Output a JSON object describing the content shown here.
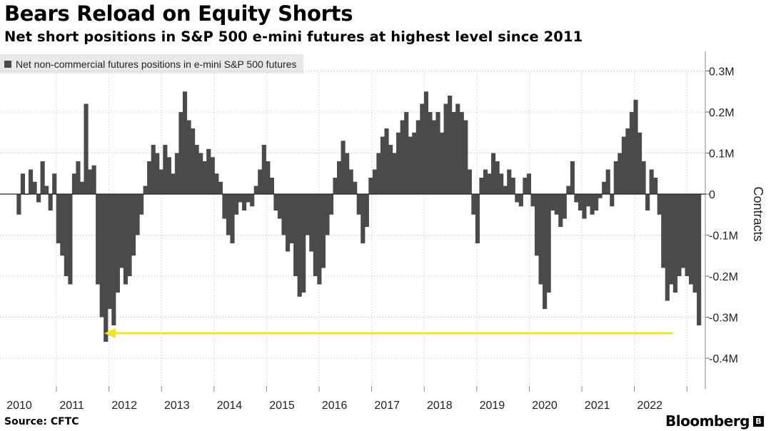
{
  "header": {
    "title": "Bears Reload on Equity Shorts",
    "subtitle": "Net short positions in S&P 500 e-mini futures at highest level since 2011"
  },
  "legend": {
    "label": "Net non-commercial futures positions in e-mini S&P 500 futures"
  },
  "footer": {
    "source": "Source: CFTC",
    "brand": "Bloomberg"
  },
  "colors": {
    "bars": "#4a4a4a",
    "grid": "#b9b9b9",
    "arrow": "#f2e51d",
    "zero_line": "#222222"
  },
  "chart_data": {
    "type": "bar",
    "title": "Bears Reload on Equity Shorts",
    "ylabel": "Contracts",
    "ylim": [
      -0.42,
      0.33
    ],
    "y_ticks": [
      0.3,
      0.2,
      0.1,
      0,
      -0.1,
      -0.2,
      -0.3,
      -0.4
    ],
    "y_tick_labels": [
      "0.3M",
      "0.2M",
      "0.1M",
      "0",
      "-0.1M",
      "-0.2M",
      "-0.3M",
      "-0.4M"
    ],
    "x_tick_labels": [
      "2010",
      "2011",
      "2012",
      "2013",
      "2014",
      "2015",
      "2016",
      "2017",
      "2018",
      "2019",
      "2020",
      "2021",
      "2022"
    ],
    "grid": true,
    "legend_position": "top-left",
    "annotation": "yellow arrow marking current net short level back to 2011 low",
    "series": [
      {
        "name": "Net non-commercial futures positions in e-mini S&P 500 futures",
        "unit": "million contracts",
        "x_start": 2009.95,
        "x_end": 2022.97,
        "points_per_year": 10,
        "values": [
          -0.05,
          0.05,
          0.0,
          0.06,
          0.03,
          -0.02,
          0.08,
          0.02,
          -0.04,
          0.05,
          -0.12,
          -0.15,
          -0.2,
          -0.22,
          0.05,
          0.08,
          0.03,
          0.22,
          0.06,
          0.07,
          -0.22,
          -0.3,
          -0.36,
          -0.28,
          -0.32,
          -0.24,
          -0.18,
          -0.22,
          -0.2,
          -0.15,
          -0.1,
          -0.05,
          0.02,
          0.08,
          0.12,
          0.1,
          0.06,
          0.12,
          0.09,
          0.05,
          0.1,
          0.2,
          0.25,
          0.18,
          0.16,
          0.12,
          0.1,
          0.08,
          0.11,
          0.09,
          0.05,
          0.03,
          -0.06,
          -0.1,
          -0.12,
          -0.05,
          -0.02,
          -0.04,
          -0.02,
          -0.03,
          0.02,
          0.06,
          0.12,
          0.08,
          0.04,
          -0.04,
          -0.06,
          -0.1,
          -0.14,
          -0.12,
          -0.2,
          -0.25,
          -0.24,
          -0.1,
          -0.14,
          -0.2,
          -0.22,
          -0.18,
          -0.1,
          -0.05,
          0.04,
          0.08,
          0.13,
          0.1,
          0.06,
          0.03,
          -0.05,
          -0.12,
          -0.08,
          0.04,
          0.06,
          0.1,
          0.14,
          0.16,
          0.12,
          0.1,
          0.15,
          0.18,
          0.2,
          0.14,
          0.15,
          0.18,
          0.22,
          0.25,
          0.2,
          0.18,
          0.2,
          0.15,
          0.22,
          0.24,
          0.2,
          0.22,
          0.2,
          0.18,
          0.06,
          -0.05,
          -0.12,
          0.04,
          0.06,
          0.05,
          0.1,
          0.08,
          0.05,
          0.02,
          0.06,
          0.04,
          -0.02,
          -0.03,
          0.04,
          0.05,
          -0.03,
          -0.15,
          -0.22,
          -0.28,
          -0.24,
          -0.04,
          -0.05,
          -0.08,
          -0.06,
          0.02,
          0.08,
          -0.02,
          -0.04,
          -0.06,
          -0.03,
          -0.05,
          -0.04,
          -0.01,
          0.03,
          0.06,
          -0.03,
          0.08,
          0.1,
          0.14,
          0.16,
          0.2,
          0.23,
          0.15,
          0.08,
          -0.04,
          0.06,
          0.04,
          -0.05,
          -0.18,
          -0.26,
          -0.22,
          -0.24,
          -0.2,
          -0.18,
          -0.2,
          -0.22,
          -0.24,
          -0.32
        ]
      }
    ]
  }
}
